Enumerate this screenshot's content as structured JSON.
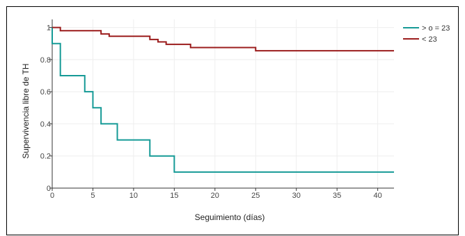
{
  "chart_data": {
    "type": "line",
    "step": true,
    "xlabel": "Seguimiento (días)",
    "ylabel": "Supervivencia libre de TH",
    "xlim": [
      0,
      42
    ],
    "ylim": [
      0,
      1.05
    ],
    "x_ticks": [
      0,
      5,
      10,
      15,
      20,
      25,
      30,
      35,
      40
    ],
    "y_ticks": [
      0,
      0.2,
      0.4,
      0.6,
      0.8,
      1
    ],
    "y_tick_labels": [
      "0",
      "0.2",
      "0.4",
      "0.6",
      "0.8",
      "1"
    ],
    "grid": true,
    "legend_position": "top-right",
    "series": [
      {
        "name": "> o = 23",
        "color": "#159a96",
        "x": [
          0,
          1,
          4,
          5,
          6,
          8,
          12,
          15,
          42
        ],
        "y": [
          0.9,
          0.7,
          0.6,
          0.5,
          0.4,
          0.3,
          0.2,
          0.1,
          0.1
        ]
      },
      {
        "name": "< 23",
        "color": "#9b1c1c",
        "x": [
          0,
          1,
          6,
          7,
          12,
          13,
          14,
          17,
          25,
          42
        ],
        "y": [
          1.0,
          0.98,
          0.96,
          0.945,
          0.925,
          0.91,
          0.895,
          0.875,
          0.855,
          0.855
        ]
      }
    ]
  }
}
